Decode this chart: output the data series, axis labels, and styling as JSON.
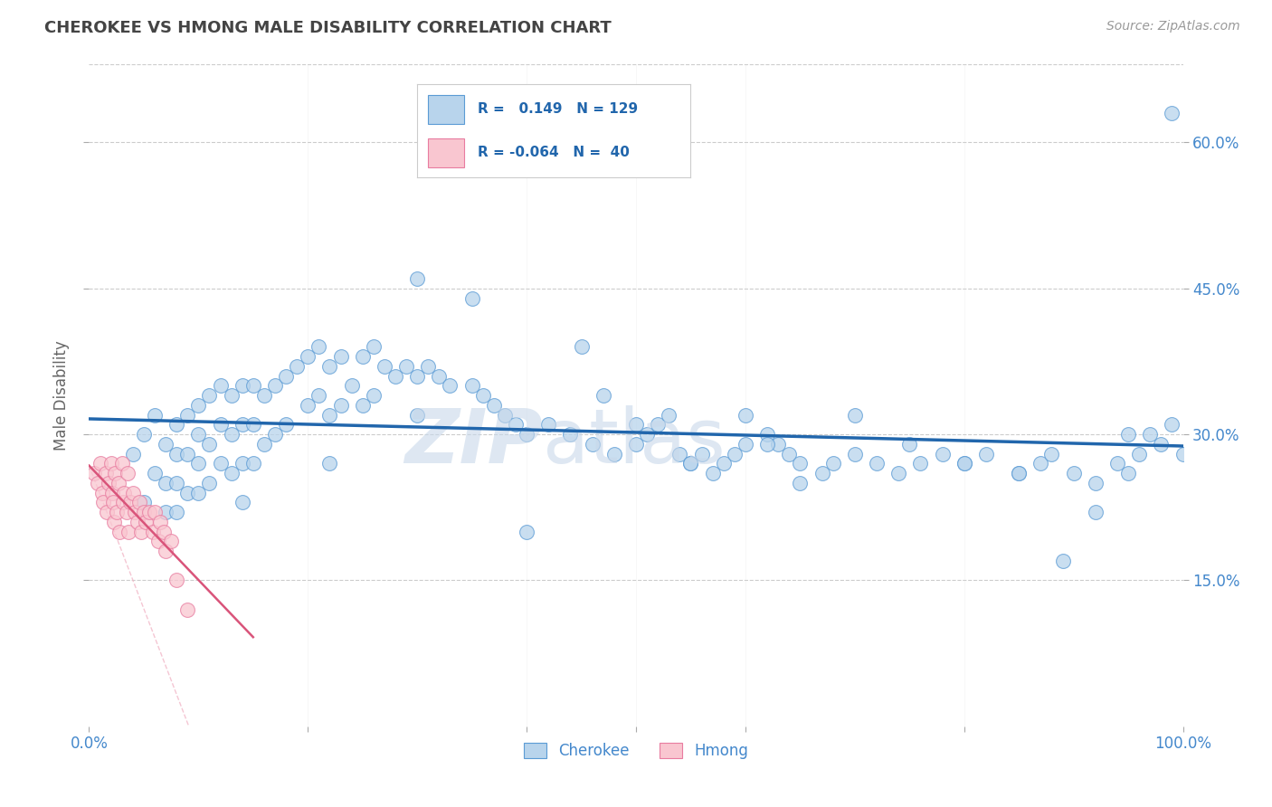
{
  "title": "CHEROKEE VS HMONG MALE DISABILITY CORRELATION CHART",
  "source": "Source: ZipAtlas.com",
  "ylabel": "Male Disability",
  "xlim": [
    0.0,
    1.0
  ],
  "ylim": [
    0.0,
    0.68
  ],
  "yticks": [
    0.15,
    0.3,
    0.45,
    0.6
  ],
  "ytick_labels": [
    "15.0%",
    "30.0%",
    "45.0%",
    "60.0%"
  ],
  "cherokee_R": 0.149,
  "cherokee_N": 129,
  "hmong_R": -0.064,
  "hmong_N": 40,
  "cherokee_color": "#b8d4ec",
  "cherokee_edge_color": "#5b9bd5",
  "cherokee_line_color": "#2166ac",
  "hmong_color": "#f9c6d0",
  "hmong_edge_color": "#e87ca0",
  "hmong_line_color": "#d9547a",
  "hmong_ci_color": "#f2b8c8",
  "background_color": "#ffffff",
  "grid_color": "#cccccc",
  "title_color": "#444444",
  "axis_label_color": "#666666",
  "tick_color": "#4488cc",
  "source_color": "#999999",
  "cherokee_seed_x": [
    0.04,
    0.05,
    0.05,
    0.06,
    0.06,
    0.07,
    0.07,
    0.07,
    0.08,
    0.08,
    0.08,
    0.08,
    0.09,
    0.09,
    0.09,
    0.1,
    0.1,
    0.1,
    0.1,
    0.11,
    0.11,
    0.11,
    0.12,
    0.12,
    0.12,
    0.13,
    0.13,
    0.13,
    0.14,
    0.14,
    0.14,
    0.14,
    0.15,
    0.15,
    0.15,
    0.16,
    0.16,
    0.17,
    0.17,
    0.18,
    0.18,
    0.19,
    0.2,
    0.2,
    0.21,
    0.21,
    0.22,
    0.22,
    0.22,
    0.23,
    0.23,
    0.24,
    0.25,
    0.25,
    0.26,
    0.26,
    0.27,
    0.28,
    0.29,
    0.3,
    0.3,
    0.31,
    0.32,
    0.33,
    0.35,
    0.36,
    0.37,
    0.38,
    0.39,
    0.4,
    0.42,
    0.44,
    0.46,
    0.48,
    0.5,
    0.51,
    0.52,
    0.53,
    0.54,
    0.55,
    0.56,
    0.57,
    0.58,
    0.59,
    0.6,
    0.62,
    0.63,
    0.64,
    0.65,
    0.67,
    0.68,
    0.7,
    0.72,
    0.74,
    0.76,
    0.78,
    0.8,
    0.82,
    0.85,
    0.87,
    0.88,
    0.9,
    0.92,
    0.94,
    0.95,
    0.96,
    0.97,
    0.98,
    0.99,
    1.0,
    0.3,
    0.35,
    0.4,
    0.45,
    0.47,
    0.5,
    0.55,
    0.6,
    0.62,
    0.65,
    0.7,
    0.75,
    0.8,
    0.85,
    0.89,
    0.92,
    0.95,
    0.99
  ],
  "cherokee_seed_y": [
    0.28,
    0.3,
    0.23,
    0.32,
    0.26,
    0.29,
    0.25,
    0.22,
    0.31,
    0.28,
    0.25,
    0.22,
    0.32,
    0.28,
    0.24,
    0.33,
    0.3,
    0.27,
    0.24,
    0.34,
    0.29,
    0.25,
    0.35,
    0.31,
    0.27,
    0.34,
    0.3,
    0.26,
    0.35,
    0.31,
    0.27,
    0.23,
    0.35,
    0.31,
    0.27,
    0.34,
    0.29,
    0.35,
    0.3,
    0.36,
    0.31,
    0.37,
    0.38,
    0.33,
    0.39,
    0.34,
    0.37,
    0.32,
    0.27,
    0.38,
    0.33,
    0.35,
    0.38,
    0.33,
    0.39,
    0.34,
    0.37,
    0.36,
    0.37,
    0.36,
    0.32,
    0.37,
    0.36,
    0.35,
    0.35,
    0.34,
    0.33,
    0.32,
    0.31,
    0.3,
    0.31,
    0.3,
    0.29,
    0.28,
    0.29,
    0.3,
    0.31,
    0.32,
    0.28,
    0.27,
    0.28,
    0.26,
    0.27,
    0.28,
    0.29,
    0.3,
    0.29,
    0.28,
    0.27,
    0.26,
    0.27,
    0.28,
    0.27,
    0.26,
    0.27,
    0.28,
    0.27,
    0.28,
    0.26,
    0.27,
    0.28,
    0.26,
    0.25,
    0.27,
    0.3,
    0.28,
    0.3,
    0.29,
    0.31,
    0.28,
    0.46,
    0.44,
    0.2,
    0.39,
    0.34,
    0.31,
    0.27,
    0.32,
    0.29,
    0.25,
    0.32,
    0.29,
    0.27,
    0.26,
    0.17,
    0.22,
    0.26,
    0.63
  ],
  "hmong_seed_x": [
    0.005,
    0.008,
    0.01,
    0.012,
    0.013,
    0.015,
    0.016,
    0.018,
    0.02,
    0.021,
    0.022,
    0.023,
    0.024,
    0.025,
    0.027,
    0.028,
    0.03,
    0.031,
    0.032,
    0.034,
    0.035,
    0.036,
    0.038,
    0.04,
    0.042,
    0.044,
    0.046,
    0.048,
    0.05,
    0.052,
    0.055,
    0.058,
    0.06,
    0.063,
    0.065,
    0.068,
    0.07,
    0.075,
    0.08,
    0.09
  ],
  "hmong_seed_y": [
    0.26,
    0.25,
    0.27,
    0.24,
    0.23,
    0.26,
    0.22,
    0.25,
    0.27,
    0.24,
    0.23,
    0.21,
    0.26,
    0.22,
    0.25,
    0.2,
    0.27,
    0.23,
    0.24,
    0.22,
    0.26,
    0.2,
    0.23,
    0.24,
    0.22,
    0.21,
    0.23,
    0.2,
    0.22,
    0.21,
    0.22,
    0.2,
    0.22,
    0.19,
    0.21,
    0.2,
    0.18,
    0.19,
    0.15,
    0.12
  ]
}
